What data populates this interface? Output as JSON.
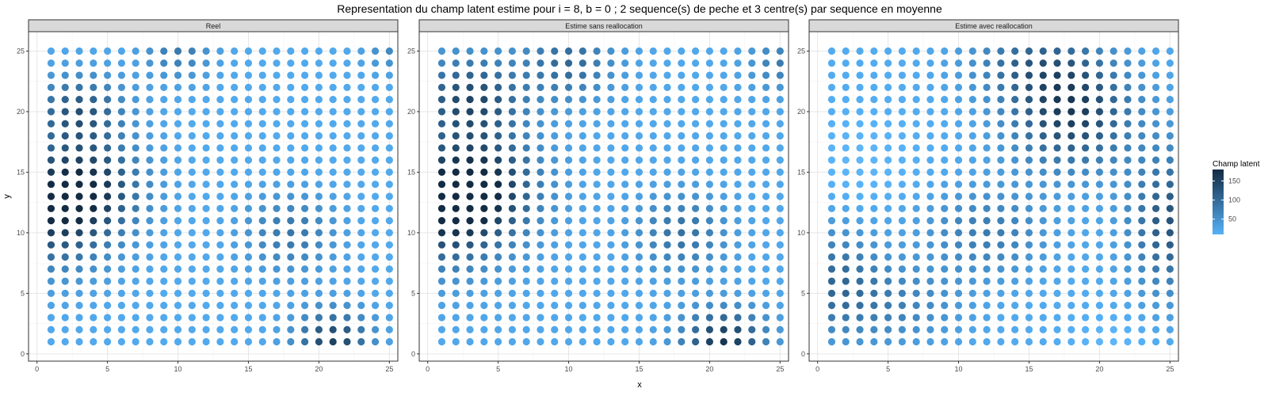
{
  "chart_data": {
    "type": "scatter",
    "title": "Representation du champ latent estime pour i = 8, b = 0 ; 2 sequence(s) de peche et 3 centre(s) par sequence en moyenne",
    "xlabel": "x",
    "ylabel": "y",
    "xlim": [
      0,
      25
    ],
    "ylim": [
      0,
      25
    ],
    "x_ticks": [
      0,
      5,
      10,
      15,
      20,
      25
    ],
    "y_ticks": [
      0,
      5,
      10,
      15,
      20,
      25
    ],
    "grid": true,
    "grid_x": [
      1,
      25
    ],
    "grid_y": [
      1,
      25
    ],
    "color_scale": {
      "name": "Champ latent",
      "low_color": "#56B1F7",
      "high_color": "#132B43",
      "range": [
        10,
        180
      ],
      "ticks": [
        50,
        100,
        150
      ],
      "legend_position": "right"
    },
    "panels": [
      {
        "label": "Reel",
        "components": [
          {
            "cx": 1,
            "cy": 12,
            "sx": 3.2,
            "sy": 3.2,
            "amp": 150
          },
          {
            "cx": 4,
            "cy": 14,
            "sx": 2.5,
            "sy": 2.5,
            "amp": 90
          },
          {
            "cx": 3,
            "cy": 20,
            "sx": 2.2,
            "sy": 2.0,
            "amp": 105
          },
          {
            "cx": 10,
            "cy": 25,
            "sx": 1.6,
            "sy": 1.6,
            "amp": 60
          },
          {
            "cx": 18,
            "cy": 10,
            "sx": 2.2,
            "sy": 2.2,
            "amp": 65
          },
          {
            "cx": 21,
            "cy": 1,
            "sx": 1.8,
            "sy": 1.8,
            "amp": 130
          },
          {
            "cx": 25,
            "cy": 25,
            "sx": 1.2,
            "sy": 1.2,
            "amp": 40
          }
        ],
        "base": 20,
        "min": 15
      },
      {
        "label": "Estime sans reallocation",
        "components": [
          {
            "cx": 1,
            "cy": 12,
            "sx": 3.2,
            "sy": 3.2,
            "amp": 150
          },
          {
            "cx": 4,
            "cy": 14,
            "sx": 2.8,
            "sy": 2.8,
            "amp": 110
          },
          {
            "cx": 3,
            "cy": 21,
            "sx": 2.6,
            "sy": 2.4,
            "amp": 120
          },
          {
            "cx": 10,
            "cy": 24,
            "sx": 2.2,
            "sy": 2.0,
            "amp": 80
          },
          {
            "cx": 18,
            "cy": 10,
            "sx": 2.2,
            "sy": 2.2,
            "amp": 70
          },
          {
            "cx": 21,
            "cy": 1,
            "sx": 2.0,
            "sy": 1.8,
            "amp": 145
          },
          {
            "cx": 25,
            "cy": 24,
            "sx": 1.5,
            "sy": 1.5,
            "amp": 55
          }
        ],
        "base": 22,
        "min": 15
      },
      {
        "label": "Estime avec reallocation",
        "components": [
          {
            "cx": 18,
            "cy": 20,
            "sx": 3.0,
            "sy": 3.2,
            "amp": 140
          },
          {
            "cx": 25,
            "cy": 11,
            "sx": 2.0,
            "sy": 4.0,
            "amp": 110
          },
          {
            "cx": 15,
            "cy": 24,
            "sx": 3.0,
            "sy": 2.0,
            "amp": 70
          },
          {
            "cx": 12,
            "cy": 10,
            "sx": 3.0,
            "sy": 2.5,
            "amp": 60
          },
          {
            "cx": 1,
            "cy": 6,
            "sx": 2.5,
            "sy": 3.0,
            "amp": 80
          },
          {
            "cx": 6,
            "cy": 4,
            "sx": 3.0,
            "sy": 2.2,
            "amp": 45
          }
        ],
        "base": 18,
        "min": 0,
        "low_patches": [
          {
            "cx": 3,
            "cy": 16,
            "sx": 2.8,
            "sy": 2.8,
            "amp": 16
          },
          {
            "cx": 21,
            "cy": 1,
            "sx": 2.0,
            "sy": 1.5,
            "amp": 16
          }
        ]
      }
    ]
  }
}
